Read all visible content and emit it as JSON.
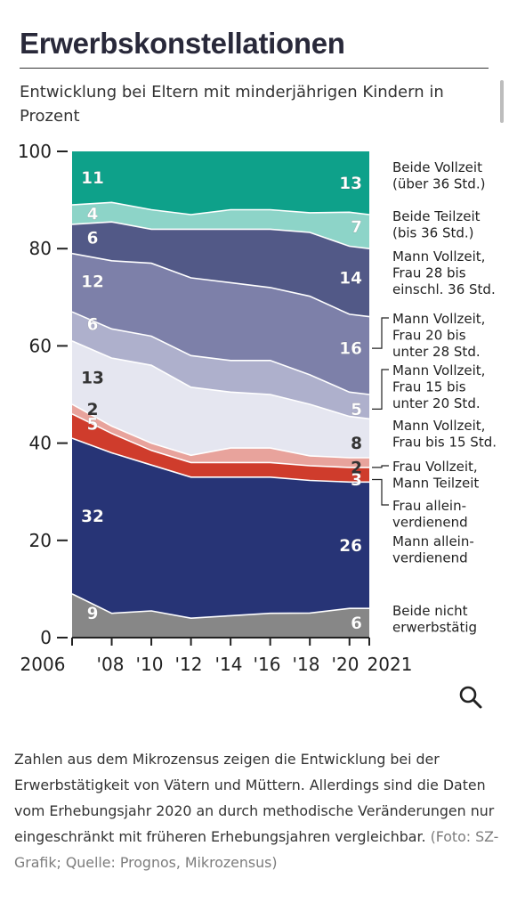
{
  "title": "Erwerbskonstellationen",
  "subtitle": "Entwicklung bei Eltern mit minderjährigen Kindern in Prozent",
  "caption": {
    "text": "Zahlen aus dem Mikrozensus zeigen die Entwicklung bei der Erwerbstätigkeit von Vätern und Müttern. Allerdings sind die Daten vom Erhebungsjahr 2020 an durch methodische Veränderungen nur eingeschränkt mit früheren Erhebungsjahren vergleichbar.",
    "credit": "(Foto: SZ-Grafik; Quelle: Prognos, Mikrozensus)"
  },
  "zoom_icon": "magnifier-icon",
  "chart_data": {
    "type": "area",
    "stacked": true,
    "x": [
      2006,
      2008,
      2010,
      2012,
      2014,
      2016,
      2018,
      2020,
      2021
    ],
    "x_tick_labels": [
      "2006",
      "'08",
      "'10",
      "'12",
      "'14",
      "'16",
      "'18",
      "'20",
      "2021"
    ],
    "ylim": [
      0,
      100
    ],
    "y_ticks": [
      0,
      20,
      40,
      60,
      80,
      100
    ],
    "grid": false,
    "legend": "right, labels next to the last year",
    "series": [
      {
        "name": "Beide nicht erwerbstätig",
        "color": "#878787",
        "text_color": "#ffffff",
        "values": [
          9,
          5,
          5.5,
          4,
          4.5,
          5,
          5,
          6,
          6
        ],
        "start_label": "9",
        "end_label": "6"
      },
      {
        "name": "Mann allein-verdienend",
        "color": "#273476",
        "text_color": "#ffffff",
        "values": [
          32,
          33,
          30,
          29,
          28.5,
          28,
          27,
          26,
          26
        ],
        "start_label": "32",
        "end_label": "26"
      },
      {
        "name": "Frau allein-verdienend",
        "color": "#cf3c2c",
        "text_color": "#ffffff",
        "values": [
          5,
          4,
          3,
          3,
          3,
          3,
          3,
          3,
          3
        ],
        "start_label": "5",
        "end_label": "3"
      },
      {
        "name": "Frau Vollzeit, Mann Teilzeit",
        "color": "#e8a39c",
        "text_color": "#333333",
        "values": [
          2,
          1.5,
          1.5,
          1.5,
          3,
          3,
          2,
          2,
          2
        ],
        "start_label": "2",
        "end_label": "2"
      },
      {
        "name": "Mann Vollzeit, Frau bis 15 Std.",
        "color": "#e5e6f0",
        "text_color": "#333333",
        "values": [
          13,
          14,
          16,
          14,
          11.5,
          11,
          10.5,
          8.5,
          8
        ],
        "start_label": "13",
        "end_label": "8"
      },
      {
        "name": "Mann Vollzeit, Frau 15 bis unter 20 Std.",
        "color": "#aeb0cc",
        "text_color": "#ffffff",
        "values": [
          6,
          6,
          6,
          6.5,
          6.5,
          7,
          6,
          5,
          5
        ],
        "start_label": "6",
        "end_label": "5"
      },
      {
        "name": "Mann Vollzeit, Frau 20 bis unter 28 Std.",
        "color": "#7d80a9",
        "text_color": "#ffffff",
        "values": [
          12,
          14,
          15,
          16,
          16,
          15,
          16,
          16,
          16
        ],
        "start_label": "12",
        "end_label": "16"
      },
      {
        "name": "Mann Vollzeit, Frau 28 bis einschl. 36 Std.",
        "color": "#525987",
        "text_color": "#ffffff",
        "values": [
          6,
          8,
          7,
          10,
          11,
          12,
          13,
          14,
          14
        ],
        "start_label": "6",
        "end_label": "14"
      },
      {
        "name": "Beide Teilzeit (bis 36 Std.)",
        "color": "#8dd4c8",
        "text_color": "#ffffff",
        "values": [
          4,
          4,
          4,
          3,
          4,
          4,
          4,
          7,
          7
        ],
        "start_label": "4",
        "end_label": "7"
      },
      {
        "name": "Beide Vollzeit (über 36 Std.)",
        "color": "#0ea18a",
        "text_color": "#ffffff",
        "values": [
          11,
          10.5,
          12,
          13,
          12,
          12,
          12.5,
          12.5,
          13
        ],
        "start_label": "11",
        "end_label": "13"
      }
    ],
    "right_labels": [
      {
        "series": 9,
        "lines": [
          "Beide Vollzeit",
          "(über 36 Std.)"
        ],
        "bracket": false
      },
      {
        "series": 8,
        "lines": [
          "Beide Teilzeit",
          "(bis 36 Std.)"
        ],
        "bracket": false
      },
      {
        "series": 7,
        "lines": [
          "Mann Vollzeit,",
          "Frau 28 bis",
          "einschl. 36 Std."
        ],
        "bracket": false
      },
      {
        "series": 6,
        "lines": [
          "Mann Vollzeit,",
          "Frau 20 bis",
          "unter 28 Std."
        ],
        "bracket": true
      },
      {
        "series": 5,
        "lines": [
          "Mann Vollzeit,",
          "Frau 15 bis",
          "unter 20 Std."
        ],
        "bracket": true
      },
      {
        "series": 4,
        "lines": [
          "Mann Vollzeit,",
          "Frau bis 15 Std."
        ],
        "bracket": false
      },
      {
        "series": 3,
        "lines": [
          "Frau Vollzeit,",
          "Mann Teilzeit"
        ],
        "bracket": true
      },
      {
        "series": 2,
        "lines": [
          "Frau allein-",
          "verdienend"
        ],
        "bracket": true
      },
      {
        "series": 1,
        "lines": [
          "Mann allein-",
          "verdienend"
        ],
        "bracket": false
      },
      {
        "series": 0,
        "lines": [
          "Beide nicht",
          "erwerbstätig"
        ],
        "bracket": false
      }
    ]
  }
}
